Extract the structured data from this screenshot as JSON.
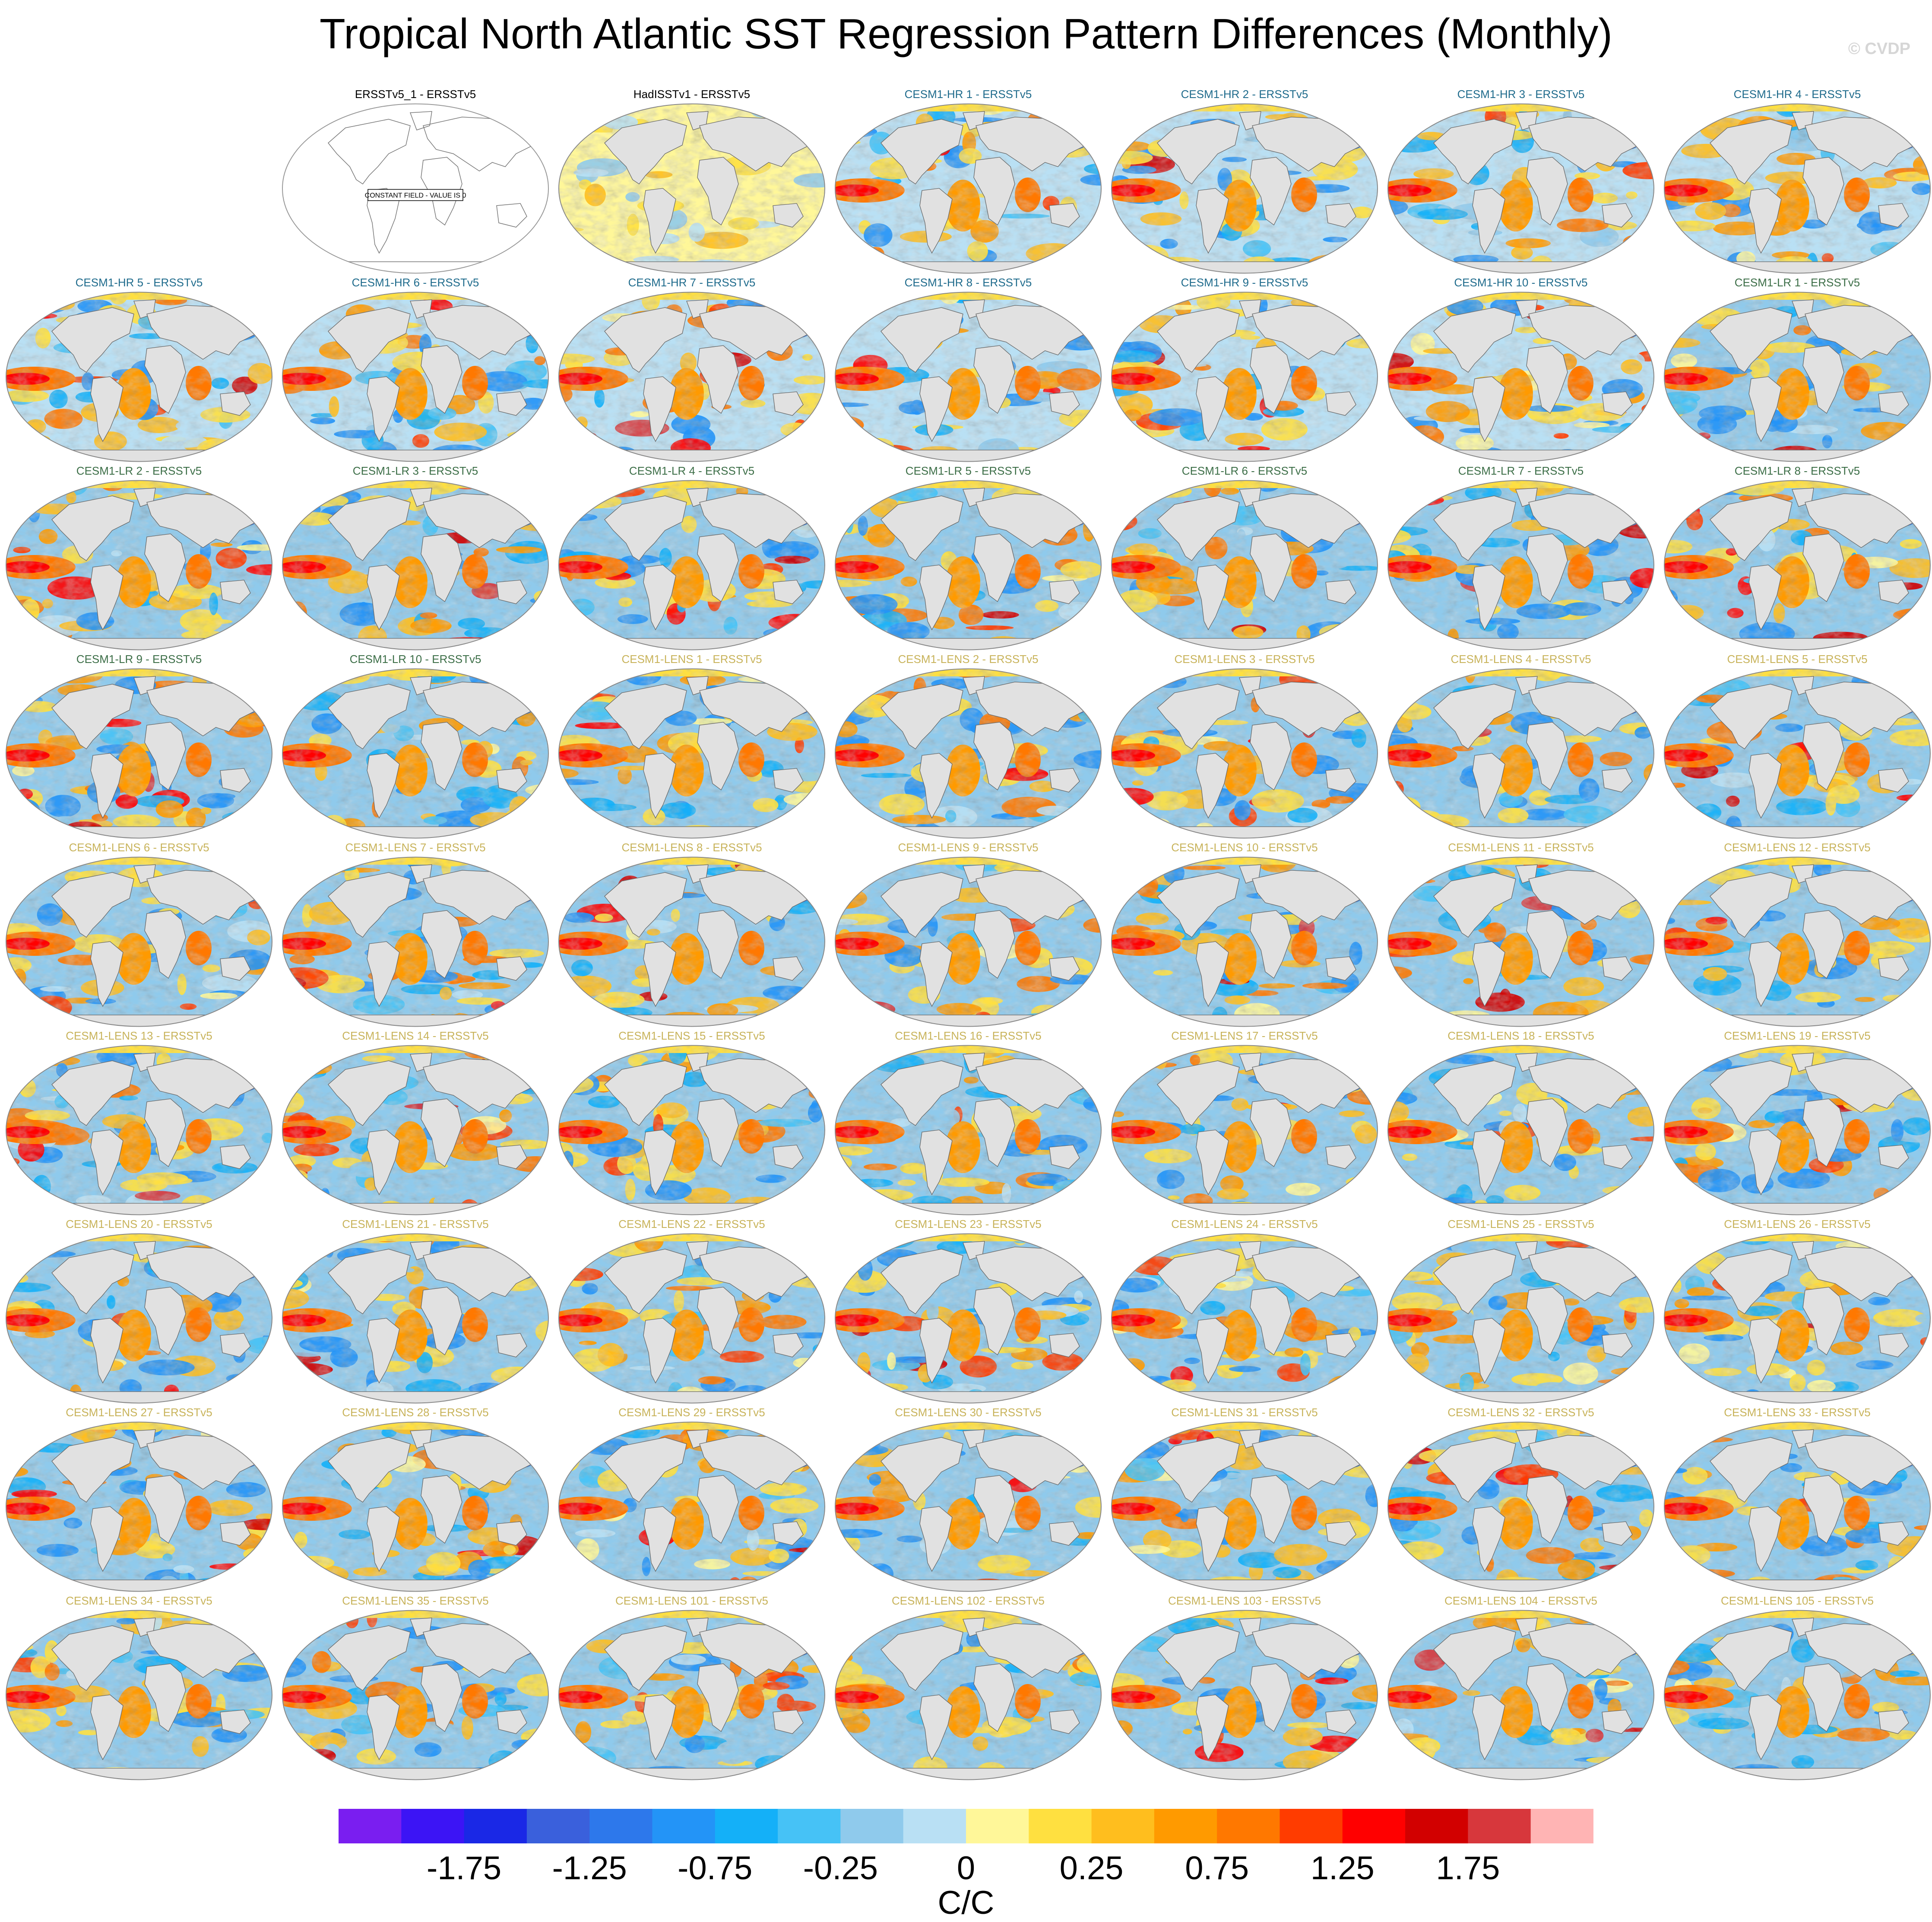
{
  "title": "Tropical North Atlantic SST Regression Pattern Differences (Monthly)",
  "watermark": "© CVDP",
  "colors": {
    "hr_title": "#1f6b8c",
    "lr_title": "#3c6e47",
    "lens_title": "#c8b35a",
    "obs_title": "#000000",
    "land": "#e1e1e1",
    "coast": "#666666",
    "palette": [
      "#7a1ef0",
      "#3c14f5",
      "#1a28e6",
      "#3a60dc",
      "#2d78eb",
      "#2394f7",
      "#14b0f8",
      "#46c2f6",
      "#8fcaec",
      "#b9e0f4",
      "#fff799",
      "#ffe040",
      "#ffbe1e",
      "#ff9a00",
      "#ff7800",
      "#ff3c00",
      "#ff0000",
      "#d20000",
      "#d7373c",
      "#ffb4b4"
    ]
  },
  "panels": [
    {
      "label": "ERSSTv5_1 - ERSSTv5",
      "group": "obs",
      "constant_text": "CONSTANT FIELD - VALUE IS 0"
    },
    {
      "label": "HadISSTv1 - ERSSTv5",
      "group": "obs"
    },
    {
      "label": "CESM1-HR 1 - ERSSTv5",
      "group": "hr"
    },
    {
      "label": "CESM1-HR 2 - ERSSTv5",
      "group": "hr"
    },
    {
      "label": "CESM1-HR 3 - ERSSTv5",
      "group": "hr"
    },
    {
      "label": "CESM1-HR 4 - ERSSTv5",
      "group": "hr"
    },
    {
      "label": "CESM1-HR 5 - ERSSTv5",
      "group": "hr"
    },
    {
      "label": "CESM1-HR 6 - ERSSTv5",
      "group": "hr"
    },
    {
      "label": "CESM1-HR 7 - ERSSTv5",
      "group": "hr"
    },
    {
      "label": "CESM1-HR 8 - ERSSTv5",
      "group": "hr"
    },
    {
      "label": "CESM1-HR 9 - ERSSTv5",
      "group": "hr"
    },
    {
      "label": "CESM1-HR 10 - ERSSTv5",
      "group": "hr"
    },
    {
      "label": "CESM1-LR 1 - ERSSTv5",
      "group": "lr"
    },
    {
      "label": "CESM1-LR 2 - ERSSTv5",
      "group": "lr"
    },
    {
      "label": "CESM1-LR 3 - ERSSTv5",
      "group": "lr"
    },
    {
      "label": "CESM1-LR 4 - ERSSTv5",
      "group": "lr"
    },
    {
      "label": "CESM1-LR 5 - ERSSTv5",
      "group": "lr"
    },
    {
      "label": "CESM1-LR 6 - ERSSTv5",
      "group": "lr"
    },
    {
      "label": "CESM1-LR 7 - ERSSTv5",
      "group": "lr"
    },
    {
      "label": "CESM1-LR 8 - ERSSTv5",
      "group": "lr"
    },
    {
      "label": "CESM1-LR 9 - ERSSTv5",
      "group": "lr"
    },
    {
      "label": "CESM1-LR 10 - ERSSTv5",
      "group": "lr"
    },
    {
      "label": "CESM1-LENS 1 - ERSSTv5",
      "group": "lens"
    },
    {
      "label": "CESM1-LENS 2 - ERSSTv5",
      "group": "lens"
    },
    {
      "label": "CESM1-LENS 3 - ERSSTv5",
      "group": "lens"
    },
    {
      "label": "CESM1-LENS 4 - ERSSTv5",
      "group": "lens"
    },
    {
      "label": "CESM1-LENS 5 - ERSSTv5",
      "group": "lens"
    },
    {
      "label": "CESM1-LENS 6 - ERSSTv5",
      "group": "lens"
    },
    {
      "label": "CESM1-LENS 7 - ERSSTv5",
      "group": "lens"
    },
    {
      "label": "CESM1-LENS 8 - ERSSTv5",
      "group": "lens"
    },
    {
      "label": "CESM1-LENS 9 - ERSSTv5",
      "group": "lens"
    },
    {
      "label": "CESM1-LENS 10 - ERSSTv5",
      "group": "lens"
    },
    {
      "label": "CESM1-LENS 11 - ERSSTv5",
      "group": "lens"
    },
    {
      "label": "CESM1-LENS 12 - ERSSTv5",
      "group": "lens"
    },
    {
      "label": "CESM1-LENS 13 - ERSSTv5",
      "group": "lens"
    },
    {
      "label": "CESM1-LENS 14 - ERSSTv5",
      "group": "lens"
    },
    {
      "label": "CESM1-LENS 15 - ERSSTv5",
      "group": "lens"
    },
    {
      "label": "CESM1-LENS 16 - ERSSTv5",
      "group": "lens"
    },
    {
      "label": "CESM1-LENS 17 - ERSSTv5",
      "group": "lens"
    },
    {
      "label": "CESM1-LENS 18 - ERSSTv5",
      "group": "lens"
    },
    {
      "label": "CESM1-LENS 19 - ERSSTv5",
      "group": "lens"
    },
    {
      "label": "CESM1-LENS 20 - ERSSTv5",
      "group": "lens"
    },
    {
      "label": "CESM1-LENS 21 - ERSSTv5",
      "group": "lens"
    },
    {
      "label": "CESM1-LENS 22 - ERSSTv5",
      "group": "lens"
    },
    {
      "label": "CESM1-LENS 23 - ERSSTv5",
      "group": "lens"
    },
    {
      "label": "CESM1-LENS 24 - ERSSTv5",
      "group": "lens"
    },
    {
      "label": "CESM1-LENS 25 - ERSSTv5",
      "group": "lens"
    },
    {
      "label": "CESM1-LENS 26 - ERSSTv5",
      "group": "lens"
    },
    {
      "label": "CESM1-LENS 27 - ERSSTv5",
      "group": "lens"
    },
    {
      "label": "CESM1-LENS 28 - ERSSTv5",
      "group": "lens"
    },
    {
      "label": "CESM1-LENS 29 - ERSSTv5",
      "group": "lens"
    },
    {
      "label": "CESM1-LENS 30 - ERSSTv5",
      "group": "lens"
    },
    {
      "label": "CESM1-LENS 31 - ERSSTv5",
      "group": "lens"
    },
    {
      "label": "CESM1-LENS 32 - ERSSTv5",
      "group": "lens"
    },
    {
      "label": "CESM1-LENS 33 - ERSSTv5",
      "group": "lens"
    },
    {
      "label": "CESM1-LENS 34 - ERSSTv5",
      "group": "lens"
    },
    {
      "label": "CESM1-LENS 35 - ERSSTv5",
      "group": "lens"
    },
    {
      "label": "CESM1-LENS 101 - ERSSTv5",
      "group": "lens"
    },
    {
      "label": "CESM1-LENS 102 - ERSSTv5",
      "group": "lens"
    },
    {
      "label": "CESM1-LENS 103 - ERSSTv5",
      "group": "lens"
    },
    {
      "label": "CESM1-LENS 104 - ERSSTv5",
      "group": "lens"
    },
    {
      "label": "CESM1-LENS 105 - ERSSTv5",
      "group": "lens"
    }
  ],
  "chart_data": {
    "type": "heatmap",
    "title": "Tropical North Atlantic SST Regression Pattern Differences (Monthly)",
    "projection": "global robinson map",
    "colorbar": {
      "units": "C/C",
      "levels": [
        -2,
        -1.75,
        -1.5,
        -1.25,
        -1,
        -0.75,
        -0.5,
        -0.25,
        -0.1,
        0,
        0.1,
        0.25,
        0.5,
        0.75,
        1,
        1.25,
        1.5,
        1.75,
        2
      ],
      "tick_values": [
        -1.75,
        -1.25,
        -0.75,
        -0.25,
        0,
        0.25,
        0.75,
        1.25,
        1.75
      ],
      "tick_labels": [
        "-1.75",
        "-1.25",
        "-0.75",
        "-0.25",
        "0",
        "0.25",
        "0.75",
        "1.25",
        "1.75"
      ]
    },
    "layout": {
      "rows": 9,
      "cols": 7,
      "first_row_offset": 1
    }
  }
}
